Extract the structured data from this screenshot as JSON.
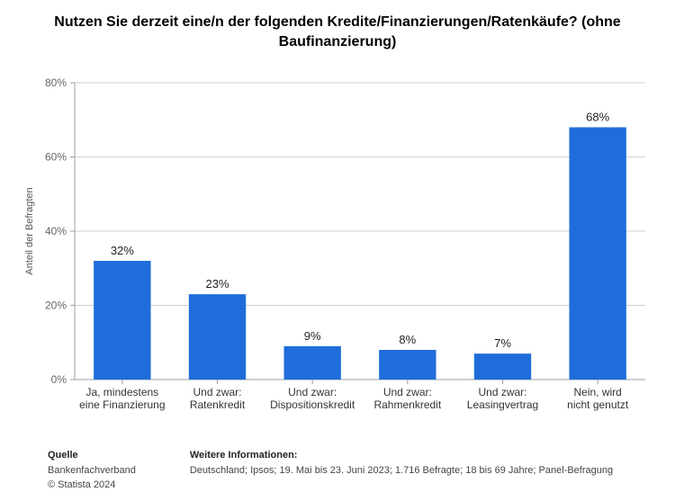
{
  "title": "Nutzen Sie derzeit eine/n der folgenden Kredite/Finanzierungen/Ratenkäufe? (ohne Baufinanzierung)",
  "title_fontsize": 16,
  "chart": {
    "type": "bar",
    "categories": [
      "Ja, mindestens eine Finanzierung",
      "Und zwar: Ratenkredit",
      "Und zwar: Dispositionskredit",
      "Und zwar: Rahmenkredit",
      "Und zwar: Leasingvertrag",
      "Nein, wird nicht genutzt"
    ],
    "values": [
      32,
      23,
      9,
      8,
      7,
      68
    ],
    "value_labels": [
      "32%",
      "23%",
      "9%",
      "8%",
      "7%",
      "68%"
    ],
    "bar_color": "#1f6ddb",
    "ylim": [
      0,
      80
    ],
    "ytick_step": 20,
    "ytick_labels": [
      "0%",
      "20%",
      "40%",
      "60%",
      "80%"
    ],
    "ylabel": "Anteil der Befragten",
    "background_color": "#ffffff",
    "grid_color": "#d0d0d0",
    "axis_color": "#9aa0a6",
    "label_fontsize": 12,
    "value_label_fontsize": 13,
    "bar_width": 0.6
  },
  "footer": {
    "source_label": "Quelle",
    "source_line1": "Bankenfachverband",
    "source_line2": "© Statista 2024",
    "info_label": "Weitere Informationen:",
    "info_text": "Deutschland; Ipsos; 19. Mai bis 23. Juni 2023; 1.716 Befragte; 18 bis 69 Jahre; Panel-Befragung"
  }
}
